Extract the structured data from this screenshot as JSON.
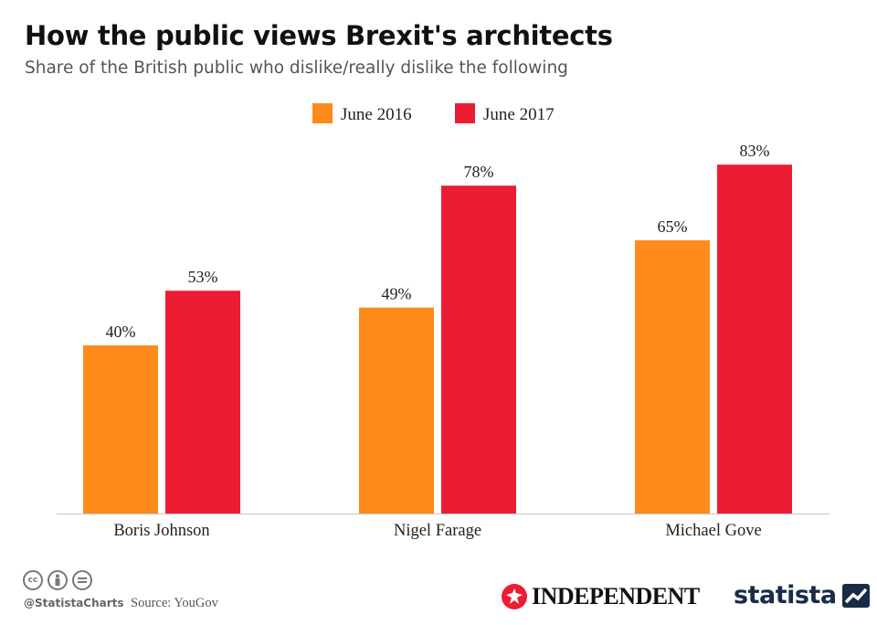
{
  "header": {
    "title": "How the public views Brexit's architects",
    "subtitle": "Share of the British public who dislike/really dislike the following"
  },
  "chart_data": {
    "type": "bar",
    "categories": [
      "Boris Johnson",
      "Nigel Farage",
      "Michael Gove"
    ],
    "series": [
      {
        "name": "June 2016",
        "color": "#ff8a1c",
        "values": [
          40,
          49,
          65
        ]
      },
      {
        "name": "June 2017",
        "color": "#ec1c33",
        "values": [
          53,
          78,
          83
        ]
      }
    ],
    "value_suffix": "%",
    "ylim": [
      0,
      100
    ],
    "grid": false,
    "legend_position": "top-center"
  },
  "footer": {
    "handle": "@StatistaCharts",
    "source": "Source: YouGov",
    "cc_icons": [
      "cc-icon",
      "by-icon",
      "nd-icon"
    ],
    "independent_logo": "INDEPENDENT",
    "statista_logo": "statista"
  }
}
